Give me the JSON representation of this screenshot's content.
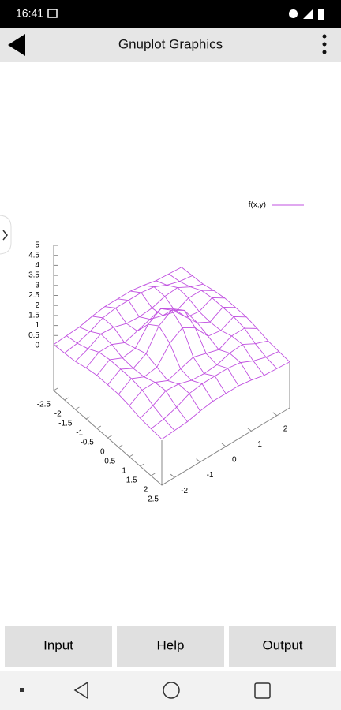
{
  "status_bar": {
    "time": "16:41"
  },
  "app_bar": {
    "title": "Gnuplot Graphics"
  },
  "chart_data": {
    "type": "surface",
    "series": [
      {
        "name": "f(x,y)",
        "color": "#c050e0"
      }
    ],
    "xlim": [
      -2.5,
      2.5
    ],
    "ylim": [
      -2.5,
      2.5
    ],
    "zlim": [
      0,
      5
    ],
    "xticks": [
      -2.5,
      -2,
      -1.5,
      -1,
      -0.5,
      0,
      0.5,
      1,
      1.5,
      2,
      2.5
    ],
    "yticks": [
      -2,
      -1,
      0,
      1,
      2
    ],
    "zticks": [
      0,
      0.5,
      1,
      1.5,
      2,
      2.5,
      3,
      3.5,
      4,
      4.5,
      5
    ],
    "x": [
      -2.5,
      -2,
      -1.5,
      -1,
      -0.5,
      0,
      0.5,
      1,
      1.5,
      2,
      2.5
    ],
    "y": [
      -2.5,
      -2,
      -1.5,
      -1,
      -0.5,
      0,
      0.5,
      1,
      1.5,
      2,
      2.5
    ],
    "z": [
      [
        0.05,
        0.1,
        0.15,
        0.3,
        0.4,
        0.4,
        0.4,
        0.3,
        0.15,
        0.1,
        0.05
      ],
      [
        0.1,
        0.2,
        0.4,
        0.7,
        0.8,
        0.8,
        0.8,
        0.7,
        0.4,
        0.2,
        0.1
      ],
      [
        0.15,
        0.4,
        0.75,
        0.7,
        0.5,
        0.45,
        0.5,
        0.7,
        0.75,
        0.4,
        0.15
      ],
      [
        0.3,
        0.7,
        0.7,
        0.4,
        0.6,
        0.8,
        0.6,
        0.4,
        0.7,
        0.7,
        0.3
      ],
      [
        0.4,
        0.8,
        0.5,
        0.6,
        1.4,
        1.8,
        1.4,
        0.6,
        0.5,
        0.8,
        0.4
      ],
      [
        0.4,
        0.8,
        0.45,
        0.8,
        1.8,
        2.2,
        1.8,
        0.8,
        0.45,
        0.8,
        0.4
      ],
      [
        0.4,
        0.8,
        0.5,
        0.6,
        1.4,
        1.8,
        1.4,
        0.6,
        0.5,
        0.8,
        0.4
      ],
      [
        0.3,
        0.7,
        0.7,
        0.4,
        0.6,
        0.8,
        0.6,
        0.4,
        0.7,
        0.7,
        0.3
      ],
      [
        0.15,
        0.4,
        0.75,
        0.7,
        0.5,
        0.45,
        0.5,
        0.7,
        0.75,
        0.4,
        0.15
      ],
      [
        0.1,
        0.2,
        0.4,
        0.7,
        0.8,
        0.8,
        0.8,
        0.7,
        0.4,
        0.2,
        0.1
      ],
      [
        0.05,
        0.1,
        0.15,
        0.3,
        0.4,
        0.4,
        0.4,
        0.3,
        0.15,
        0.1,
        0.05
      ]
    ]
  },
  "buttons": [
    "Input",
    "Help",
    "Output"
  ]
}
